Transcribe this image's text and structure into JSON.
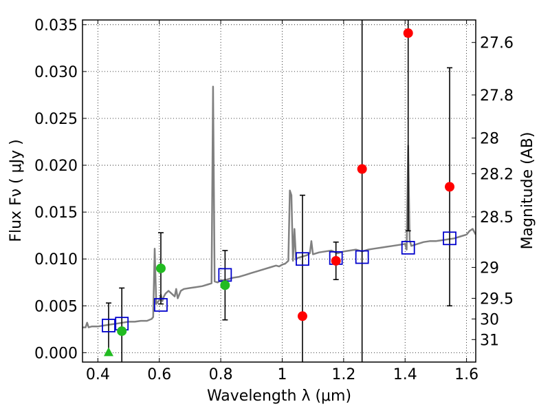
{
  "chart_data": {
    "type": "scatter",
    "xlabel": "Wavelength  λ (μm)",
    "ylabel": "Flux  Fν  ( μJy )",
    "y2label": "Magnitude (AB)",
    "xlim": [
      0.35,
      1.63
    ],
    "ylim": [
      -0.001,
      0.0355
    ],
    "x_ticks": [
      0.4,
      0.6,
      0.8,
      1.0,
      1.2,
      1.4,
      1.6
    ],
    "x_tick_labels": [
      "0.4",
      "0.6",
      "0.8",
      "1",
      "1.2",
      "1.4",
      "1.6"
    ],
    "y_ticks": [
      0.0,
      0.005,
      0.01,
      0.015,
      0.02,
      0.025,
      0.03,
      0.035
    ],
    "y_tick_labels": [
      "0.000",
      "0.005",
      "0.010",
      "0.015",
      "0.020",
      "0.025",
      "0.030",
      "0.035"
    ],
    "y2_ticks": [
      {
        "label": "27.6",
        "flux": 0.0331
      },
      {
        "label": "27.8",
        "flux": 0.0275
      },
      {
        "label": "28",
        "flux": 0.0229
      },
      {
        "label": "28.2",
        "flux": 0.0191
      },
      {
        "label": "28.5",
        "flux": 0.0145
      },
      {
        "label": "29",
        "flux": 0.0091
      },
      {
        "label": "29.5",
        "flux": 0.0058
      },
      {
        "label": "30",
        "flux": 0.0036
      },
      {
        "label": "31",
        "flux": 0.0014
      }
    ],
    "grid": true,
    "series": [
      {
        "name": "model-spectrum",
        "kind": "line",
        "color": "#808080",
        "points": [
          [
            0.35,
            0.0027
          ],
          [
            0.36,
            0.0027
          ],
          [
            0.365,
            0.0032
          ],
          [
            0.37,
            0.0027
          ],
          [
            0.38,
            0.0028
          ],
          [
            0.4,
            0.0028
          ],
          [
            0.42,
            0.0029
          ],
          [
            0.44,
            0.003
          ],
          [
            0.46,
            0.0031
          ],
          [
            0.48,
            0.0032
          ],
          [
            0.5,
            0.0033
          ],
          [
            0.52,
            0.0033
          ],
          [
            0.54,
            0.0034
          ],
          [
            0.56,
            0.0034
          ],
          [
            0.575,
            0.0036
          ],
          [
            0.58,
            0.0038
          ],
          [
            0.585,
            0.0111
          ],
          [
            0.59,
            0.0052
          ],
          [
            0.6,
            0.0056
          ],
          [
            0.605,
            0.0062
          ],
          [
            0.61,
            0.0055
          ],
          [
            0.615,
            0.006
          ],
          [
            0.62,
            0.0063
          ],
          [
            0.63,
            0.0066
          ],
          [
            0.64,
            0.0063
          ],
          [
            0.65,
            0.006
          ],
          [
            0.655,
            0.0068
          ],
          [
            0.66,
            0.0058
          ],
          [
            0.67,
            0.0066
          ],
          [
            0.68,
            0.0068
          ],
          [
            0.7,
            0.0069
          ],
          [
            0.72,
            0.007
          ],
          [
            0.74,
            0.0071
          ],
          [
            0.76,
            0.0073
          ],
          [
            0.77,
            0.0074
          ],
          [
            0.775,
            0.0284
          ],
          [
            0.78,
            0.0076
          ],
          [
            0.79,
            0.0075
          ],
          [
            0.8,
            0.0077
          ],
          [
            0.82,
            0.0078
          ],
          [
            0.84,
            0.008
          ],
          [
            0.86,
            0.0081
          ],
          [
            0.88,
            0.0083
          ],
          [
            0.9,
            0.0085
          ],
          [
            0.92,
            0.0087
          ],
          [
            0.94,
            0.0089
          ],
          [
            0.96,
            0.0091
          ],
          [
            0.98,
            0.0093
          ],
          [
            0.99,
            0.0092
          ],
          [
            1.0,
            0.0094
          ],
          [
            1.01,
            0.0095
          ],
          [
            1.02,
            0.0098
          ],
          [
            1.025,
            0.0173
          ],
          [
            1.03,
            0.0168
          ],
          [
            1.035,
            0.0098
          ],
          [
            1.04,
            0.0132
          ],
          [
            1.045,
            0.0099
          ],
          [
            1.05,
            0.0101
          ],
          [
            1.06,
            0.0102
          ],
          [
            1.08,
            0.0104
          ],
          [
            1.09,
            0.0106
          ],
          [
            1.095,
            0.0119
          ],
          [
            1.1,
            0.0105
          ],
          [
            1.12,
            0.0107
          ],
          [
            1.14,
            0.0108
          ],
          [
            1.16,
            0.0109
          ],
          [
            1.18,
            0.0106
          ],
          [
            1.2,
            0.0108
          ],
          [
            1.22,
            0.0109
          ],
          [
            1.24,
            0.011
          ],
          [
            1.26,
            0.0108
          ],
          [
            1.28,
            0.011
          ],
          [
            1.3,
            0.0111
          ],
          [
            1.32,
            0.0112
          ],
          [
            1.34,
            0.0113
          ],
          [
            1.36,
            0.0114
          ],
          [
            1.38,
            0.0115
          ],
          [
            1.4,
            0.0116
          ],
          [
            1.405,
            0.011
          ],
          [
            1.41,
            0.0221
          ],
          [
            1.415,
            0.012
          ],
          [
            1.42,
            0.0114
          ],
          [
            1.44,
            0.0116
          ],
          [
            1.46,
            0.0118
          ],
          [
            1.48,
            0.0119
          ],
          [
            1.5,
            0.0119
          ],
          [
            1.52,
            0.012
          ],
          [
            1.54,
            0.0121
          ],
          [
            1.56,
            0.0122
          ],
          [
            1.58,
            0.0124
          ],
          [
            1.6,
            0.0126
          ],
          [
            1.61,
            0.013
          ],
          [
            1.62,
            0.0132
          ],
          [
            1.63,
            0.0126
          ]
        ]
      },
      {
        "name": "model-photometry",
        "kind": "open-square",
        "color": "#0000cc",
        "points": [
          [
            0.435,
            0.0029
          ],
          [
            0.478,
            0.0031
          ],
          [
            0.605,
            0.0051
          ],
          [
            0.814,
            0.0083
          ],
          [
            1.066,
            0.01
          ],
          [
            1.175,
            0.0101
          ],
          [
            1.26,
            0.0102
          ],
          [
            1.41,
            0.0112
          ],
          [
            1.545,
            0.0122
          ]
        ]
      },
      {
        "name": "detections-green",
        "kind": "filled-circle",
        "color": "#22bb22",
        "points": [
          [
            0.478,
            0.0023
          ],
          [
            0.605,
            0.009
          ],
          [
            0.814,
            0.0072
          ]
        ]
      },
      {
        "name": "upper-limit-green",
        "kind": "triangle",
        "color": "#22bb22",
        "points": [
          [
            0.435,
            0.0
          ]
        ]
      },
      {
        "name": "detections-red",
        "kind": "filled-circle",
        "color": "#ff0000",
        "points": [
          [
            1.066,
            0.0039
          ],
          [
            1.175,
            0.0098
          ],
          [
            1.26,
            0.0196
          ],
          [
            1.41,
            0.0341
          ],
          [
            1.545,
            0.0177
          ]
        ]
      }
    ],
    "error_bars": [
      {
        "x": 0.435,
        "low": 0.0,
        "high": 0.0053
      },
      {
        "x": 0.478,
        "low": -0.001,
        "high": 0.0069
      },
      {
        "x": 0.605,
        "low": 0.0052,
        "high": 0.0128
      },
      {
        "x": 0.814,
        "low": 0.0035,
        "high": 0.0109
      },
      {
        "x": 1.066,
        "low": -0.001,
        "high": 0.0168
      },
      {
        "x": 1.175,
        "low": 0.0078,
        "high": 0.0118
      },
      {
        "x": 1.26,
        "low": -0.001,
        "high": 0.0355
      },
      {
        "x": 1.41,
        "low": 0.013,
        "high": 0.0355
      },
      {
        "x": 1.545,
        "low": 0.005,
        "high": 0.0304
      }
    ]
  }
}
